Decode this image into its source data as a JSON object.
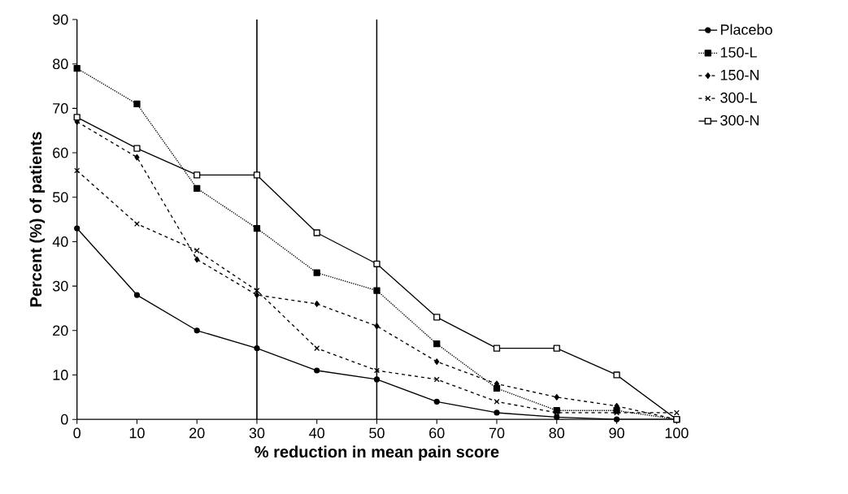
{
  "chart_data": {
    "type": "line",
    "xlabel": "% reduction in mean pain score",
    "ylabel": "Percent (%) of patients",
    "x": [
      0,
      10,
      20,
      30,
      40,
      50,
      60,
      70,
      80,
      90,
      100
    ],
    "series": [
      {
        "name": "Placebo",
        "color": "#000000",
        "marker": "circle",
        "line_style": "solid",
        "values": [
          43,
          28,
          20,
          16,
          11,
          9,
          4,
          1.5,
          0.5,
          0,
          0
        ]
      },
      {
        "name": "150-L",
        "color": "#000000",
        "marker": "square",
        "line_style": "dotted",
        "values": [
          79,
          71,
          52,
          43,
          33,
          29,
          17,
          7,
          2,
          2,
          0
        ]
      },
      {
        "name": "150-N",
        "color": "#000000",
        "marker": "diamond",
        "line_style": "dashed",
        "values": [
          67,
          59,
          36,
          28,
          26,
          21,
          13,
          8,
          5,
          3,
          0
        ]
      },
      {
        "name": "300-L",
        "color": "#000000",
        "marker": "cross",
        "line_style": "dashed",
        "values": [
          56,
          44,
          38,
          29,
          16,
          11,
          9,
          4,
          1.5,
          1.5,
          1.5
        ]
      },
      {
        "name": "300-N",
        "color": "#000000",
        "marker": "square",
        "line_style": "solid",
        "values": [
          68,
          61,
          55,
          55,
          42,
          35,
          23,
          16,
          16,
          10,
          0
        ]
      }
    ],
    "xlim": [
      0,
      100
    ],
    "xticks": [
      0,
      10,
      20,
      30,
      40,
      50,
      60,
      70,
      80,
      90,
      100
    ],
    "ylim": [
      0,
      90
    ],
    "yticks": [
      0,
      10,
      20,
      30,
      40,
      50,
      60,
      70,
      80,
      90
    ],
    "ref_lines": [
      {
        "axis": "x",
        "value": 30,
        "color": "#000000"
      },
      {
        "axis": "x",
        "value": 50,
        "color": "#000000"
      }
    ],
    "grid": false,
    "legend": "right"
  }
}
